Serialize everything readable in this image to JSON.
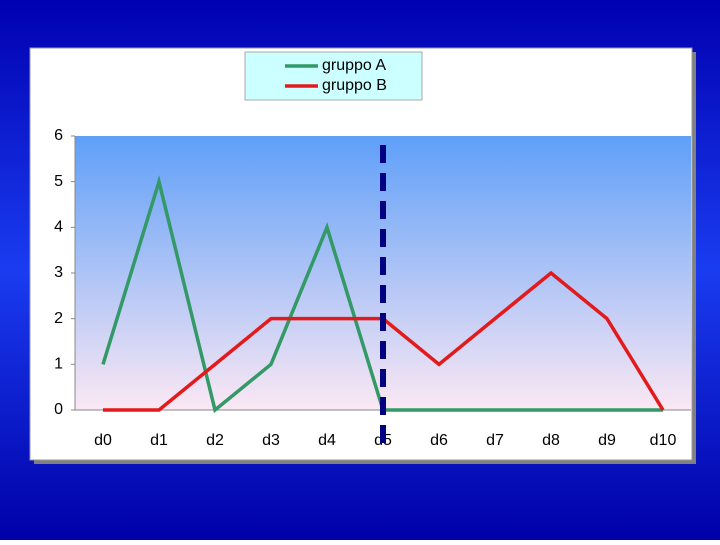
{
  "chart_data": {
    "type": "line",
    "categories": [
      "d0",
      "d1",
      "d2",
      "d3",
      "d4",
      "d5",
      "d6",
      "d7",
      "d8",
      "d9",
      "d10"
    ],
    "series": [
      {
        "name": "gruppo A",
        "color": "#339966",
        "values": [
          1,
          5,
          0,
          1,
          4,
          0,
          0,
          0,
          0,
          0,
          0
        ]
      },
      {
        "name": "gruppo B",
        "color": "#e31a1c",
        "values": [
          0,
          0,
          1,
          2,
          2,
          2,
          1,
          2,
          3,
          2,
          0
        ]
      }
    ],
    "ylim": [
      0,
      6
    ],
    "yticks": [
      0,
      1,
      2,
      3,
      4,
      5,
      6
    ],
    "grid": false
  }
}
